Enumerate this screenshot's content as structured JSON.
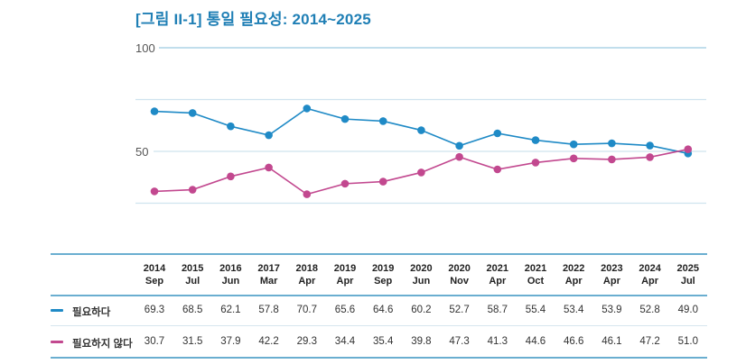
{
  "title": "[그림 II-1] 통일 필요성: 2014~2025",
  "colors": {
    "title": "#1f7fb5",
    "series1": "#1f8ac6",
    "series2": "#c2488f",
    "grid": "#cfe3ee",
    "rule": "#6aaed0"
  },
  "chart_data": {
    "type": "line",
    "title": "[그림 II-1] 통일 필요성: 2014~2025",
    "xlabel": "",
    "ylabel": "",
    "ylim": [
      0,
      100
    ],
    "yticks_labeled": [
      100,
      50
    ],
    "gridlines": [
      100,
      75,
      50,
      25
    ],
    "grid": true,
    "categories": [
      {
        "year": "2014",
        "month": "Sep"
      },
      {
        "year": "2015",
        "month": "Jul"
      },
      {
        "year": "2016",
        "month": "Jun"
      },
      {
        "year": "2017",
        "month": "Mar"
      },
      {
        "year": "2018",
        "month": "Apr"
      },
      {
        "year": "2019",
        "month": "Apr"
      },
      {
        "year": "2019",
        "month": "Sep"
      },
      {
        "year": "2020",
        "month": "Jun"
      },
      {
        "year": "2020",
        "month": "Nov"
      },
      {
        "year": "2021",
        "month": "Apr"
      },
      {
        "year": "2021",
        "month": "Oct"
      },
      {
        "year": "2022",
        "month": "Apr"
      },
      {
        "year": "2023",
        "month": "Apr"
      },
      {
        "year": "2024",
        "month": "Apr"
      },
      {
        "year": "2025",
        "month": "Jul"
      }
    ],
    "series": [
      {
        "name": "필요하다",
        "color": "#1f8ac6",
        "values": [
          "69.3",
          "68.5",
          "62.1",
          "57.8",
          "70.7",
          "65.6",
          "64.6",
          "60.2",
          "52.7",
          "58.7",
          "55.4",
          "53.4",
          "53.9",
          "52.8",
          "49.0"
        ]
      },
      {
        "name": "필요하지 않다",
        "color": "#c2488f",
        "values": [
          "30.7",
          "31.5",
          "37.9",
          "42.2",
          "29.3",
          "34.4",
          "35.4",
          "39.8",
          "47.3",
          "41.3",
          "44.6",
          "46.6",
          "46.1",
          "47.2",
          "51.0"
        ]
      }
    ],
    "legend": "table-left"
  }
}
